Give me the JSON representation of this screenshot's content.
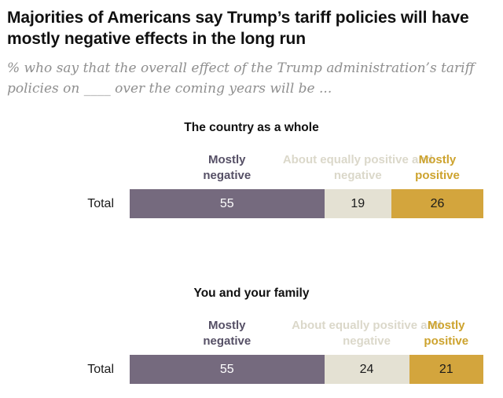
{
  "header": {
    "title": "Majorities of Americans say Trump’s tariff policies will have mostly negative effects in the long run",
    "subtitle": "% who say that the overall effect of the Trump administration’s tariff policies on ____ over the coming years will be ..."
  },
  "colors": {
    "mostly_negative": "#756a7e",
    "about_equal": "#e4e1d3",
    "mostly_positive": "#d3a53d",
    "title_text": "#101010",
    "subtitle_text": "#8f8f8f"
  },
  "chart_data": [
    {
      "type": "bar",
      "orientation": "horizontal-stacked",
      "title": "The country as a whole",
      "categories": [
        "Total"
      ],
      "xlim": [
        0,
        100
      ],
      "grid": false,
      "legend_position": "above-bar-segment-headers",
      "series": [
        {
          "name": "Mostly negative",
          "values": [
            55
          ],
          "color": "#756a7e",
          "label_color": "#565066",
          "value_color": "#ffffff"
        },
        {
          "name": "About equally positive and negative",
          "values": [
            19
          ],
          "color": "#e4e1d3",
          "label_color": "#dbd8ca",
          "value_color": "#1a1a1a"
        },
        {
          "name": "Mostly positive",
          "values": [
            26
          ],
          "color": "#d3a53d",
          "label_color": "#cda32e",
          "value_color": "#1a1a1a"
        }
      ]
    },
    {
      "type": "bar",
      "orientation": "horizontal-stacked",
      "title": "You and your family",
      "categories": [
        "Total"
      ],
      "xlim": [
        0,
        100
      ],
      "grid": false,
      "legend_position": "above-bar-segment-headers",
      "series": [
        {
          "name": "Mostly negative",
          "values": [
            55
          ],
          "color": "#756a7e",
          "label_color": "#565066",
          "value_color": "#ffffff"
        },
        {
          "name": "About equally positive and negative",
          "values": [
            24
          ],
          "color": "#e4e1d3",
          "label_color": "#dbd8ca",
          "value_color": "#1a1a1a"
        },
        {
          "name": "Mostly positive",
          "values": [
            21
          ],
          "color": "#d3a53d",
          "label_color": "#cda32e",
          "value_color": "#1a1a1a"
        }
      ]
    }
  ]
}
